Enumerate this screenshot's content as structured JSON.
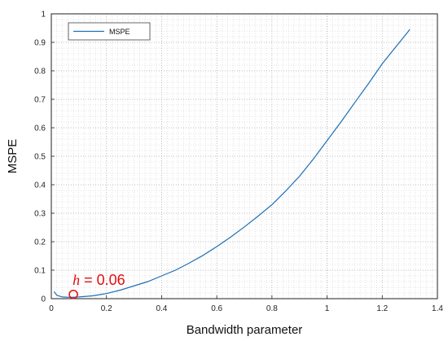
{
  "chart_data": {
    "type": "line",
    "xlabel": "Bandwidth parameter",
    "ylabel": "MSPE",
    "xlim": [
      0,
      1.4
    ],
    "ylim": [
      0,
      1
    ],
    "xticks": [
      "0",
      "0.2",
      "0.4",
      "0.6",
      "0.8",
      "1",
      "1.2",
      "1.4"
    ],
    "yticks": [
      "0",
      "0.1",
      "0.2",
      "0.3",
      "0.4",
      "0.5",
      "0.6",
      "0.7",
      "0.8",
      "0.9",
      "1"
    ],
    "grid": true,
    "legend_position": "top-left",
    "series": [
      {
        "name": "MSPE",
        "color": "#1f6fb4",
        "x": [
          0.01,
          0.02,
          0.04,
          0.06,
          0.08,
          0.1,
          0.15,
          0.2,
          0.25,
          0.3,
          0.35,
          0.4,
          0.45,
          0.5,
          0.55,
          0.6,
          0.65,
          0.7,
          0.75,
          0.8,
          0.85,
          0.9,
          0.95,
          1.0,
          1.05,
          1.1,
          1.15,
          1.2,
          1.25,
          1.3
        ],
        "y": [
          0.025,
          0.012,
          0.006,
          0.005,
          0.005,
          0.006,
          0.01,
          0.018,
          0.03,
          0.045,
          0.06,
          0.08,
          0.1,
          0.125,
          0.152,
          0.183,
          0.216,
          0.252,
          0.29,
          0.33,
          0.378,
          0.43,
          0.49,
          0.555,
          0.62,
          0.688,
          0.755,
          0.825,
          0.885,
          0.945
        ]
      }
    ],
    "annotation": {
      "symbol": "h",
      "text": " = 0.06",
      "x": 0.08,
      "y": 0.015,
      "color": "#e01010"
    }
  }
}
